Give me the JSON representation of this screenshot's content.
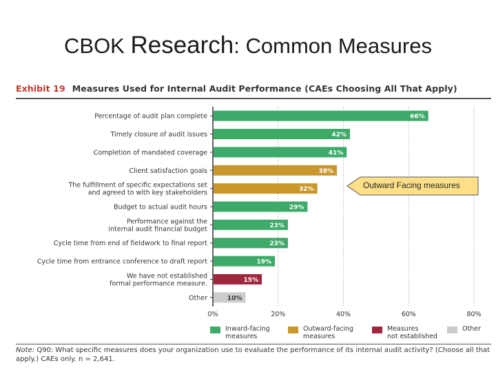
{
  "slide": {
    "title_part1": "CBOK ",
    "title_part2": "Research",
    "title_part3": ": Common Measures"
  },
  "exhibit": {
    "label": "Exhibit 19",
    "title": "Measures Used for Internal Audit Performance (CAEs Choosing All That Apply)"
  },
  "callout": {
    "text": "Outward Facing measures"
  },
  "colors": {
    "inward": "#3daa6a",
    "outward": "#c8962b",
    "not_established": "#a0263d",
    "other": "#cccccc"
  },
  "chart_data": {
    "type": "bar",
    "orientation": "horizontal",
    "categories": [
      "Percentage of audit plan complete",
      "Timely closure of audit issues",
      "Completion of mandated coverage",
      "Client satisfaction goals",
      "The fulfillment of specific expectations set|and agreed to with key stakeholders",
      "Budget to actual audit hours",
      "Performance against the|internal audit financial budget",
      "Cycle time from end of fieldwork to final report",
      "Cycle time from entrance conference to draft report",
      "We have not established|formal performance measure.",
      "Other"
    ],
    "values": [
      66,
      42,
      41,
      38,
      32,
      29,
      23,
      23,
      19,
      15,
      10
    ],
    "value_labels": [
      "66%",
      "42%",
      "41%",
      "38%",
      "32%",
      "29%",
      "23%",
      "23%",
      "19%",
      "15%",
      "10%"
    ],
    "groups": [
      "inward",
      "inward",
      "inward",
      "outward",
      "outward",
      "inward",
      "inward",
      "inward",
      "inward",
      "not_established",
      "other"
    ],
    "xlim": [
      0,
      80
    ],
    "xticks": [
      "0%",
      "20%",
      "40%",
      "60%",
      "80%"
    ],
    "grid": true,
    "legend": [
      {
        "key": "inward",
        "label": "Inward-facing\nmeasures"
      },
      {
        "key": "outward",
        "label": "Outward-facing\nmeasures"
      },
      {
        "key": "not_established",
        "label": "Measures\nnot established"
      },
      {
        "key": "other",
        "label": "Other"
      }
    ],
    "legend_position": "bottom"
  },
  "note": {
    "label": "Note:",
    "text": " Q90: What specific measures does your organization use to evaluate the performance of its internal audit activity? (Choose all that apply.) CAEs only. n = 2,641."
  }
}
